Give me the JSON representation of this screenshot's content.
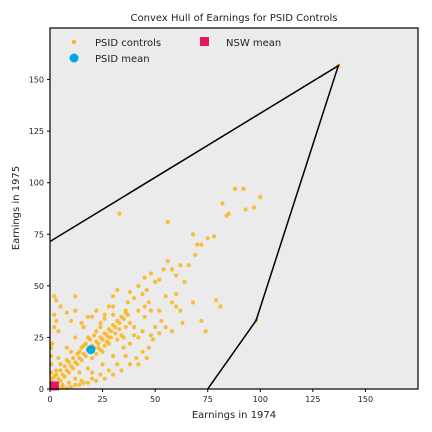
{
  "chart_data": {
    "type": "scatter",
    "title": "Convex Hull of Earnings for PSID Controls",
    "xlabel": "Earnings in 1974",
    "ylabel": "Earnings in 1975",
    "xlim": [
      0,
      175
    ],
    "ylim": [
      0,
      175
    ],
    "x_ticks": [
      0,
      25,
      50,
      75,
      100,
      125,
      150
    ],
    "y_ticks": [
      0,
      25,
      50,
      75,
      100,
      125,
      150
    ],
    "x_tick_labels": [
      "0",
      "25",
      "50",
      "75",
      "100",
      "125",
      "150"
    ],
    "y_tick_labels": [
      "0",
      "25",
      "50",
      "75",
      "100",
      "125",
      "150"
    ],
    "grid": false,
    "legend_position": "top-left",
    "legend": [
      {
        "label": "PSID controls",
        "marker": "dot",
        "color": "#fbb41a"
      },
      {
        "label": "NSW mean",
        "marker": "square",
        "color": "#e8175d"
      },
      {
        "label": "PSID mean",
        "marker": "circle",
        "color": "#00a8e0"
      }
    ],
    "series": [
      {
        "name": "PSID controls",
        "color": "#fbb41a",
        "points": [
          [
            137.1,
            156.7
          ],
          [
            98,
            33.2
          ],
          [
            88,
            97
          ],
          [
            92,
            97
          ],
          [
            97,
            88
          ],
          [
            100,
            93
          ],
          [
            93,
            87
          ],
          [
            84,
            84
          ],
          [
            82,
            90
          ],
          [
            85,
            85
          ],
          [
            33,
            85
          ],
          [
            56,
            81
          ],
          [
            72,
            70
          ],
          [
            70,
            70
          ],
          [
            68,
            75
          ],
          [
            75,
            73
          ],
          [
            78,
            74
          ],
          [
            69,
            65
          ],
          [
            66,
            60
          ],
          [
            62,
            60
          ],
          [
            58,
            58
          ],
          [
            60,
            55
          ],
          [
            64,
            52
          ],
          [
            56,
            62
          ],
          [
            54,
            58
          ],
          [
            52,
            53
          ],
          [
            50,
            52
          ],
          [
            48,
            56
          ],
          [
            45,
            54
          ],
          [
            46,
            48
          ],
          [
            42,
            50
          ],
          [
            40,
            44
          ],
          [
            44,
            46
          ],
          [
            38,
            47
          ],
          [
            37,
            42
          ],
          [
            36,
            38
          ],
          [
            52,
            38
          ],
          [
            48,
            38
          ],
          [
            55,
            45
          ],
          [
            58,
            42
          ],
          [
            60,
            46
          ],
          [
            62,
            38
          ],
          [
            53,
            33
          ],
          [
            60,
            40
          ],
          [
            72,
            33
          ],
          [
            68,
            42
          ],
          [
            74,
            28
          ],
          [
            79,
            43
          ],
          [
            81,
            40
          ],
          [
            42,
            12
          ],
          [
            46,
            15
          ],
          [
            30,
            45
          ],
          [
            28,
            40
          ],
          [
            32,
            48
          ],
          [
            26,
            36
          ],
          [
            2,
            45
          ],
          [
            3,
            43
          ],
          [
            2,
            36
          ],
          [
            3,
            33
          ],
          [
            2,
            30
          ],
          [
            4,
            28
          ],
          [
            5,
            40
          ],
          [
            8,
            37
          ],
          [
            10,
            33
          ],
          [
            12,
            38
          ],
          [
            12,
            45
          ],
          [
            15,
            32
          ],
          [
            18,
            35
          ],
          [
            22,
            38
          ],
          [
            24,
            30
          ],
          [
            28,
            25
          ],
          [
            35,
            25
          ],
          [
            38,
            22
          ],
          [
            40,
            26
          ],
          [
            44,
            28
          ],
          [
            42,
            25
          ],
          [
            48,
            26
          ],
          [
            50,
            30
          ],
          [
            52,
            27
          ],
          [
            55,
            30
          ],
          [
            58,
            28
          ],
          [
            63,
            32
          ],
          [
            0.5,
            0.5
          ],
          [
            1,
            1
          ],
          [
            2,
            2
          ],
          [
            1,
            3
          ],
          [
            3,
            1
          ],
          [
            4,
            5
          ],
          [
            5,
            4
          ],
          [
            6,
            7
          ],
          [
            7,
            6
          ],
          [
            8,
            9
          ],
          [
            9,
            8
          ],
          [
            10,
            11
          ],
          [
            11,
            10
          ],
          [
            12,
            13
          ],
          [
            13,
            12
          ],
          [
            14,
            15
          ],
          [
            15,
            14
          ],
          [
            16,
            17
          ],
          [
            17,
            16
          ],
          [
            18,
            19
          ],
          [
            19,
            18
          ],
          [
            20,
            21
          ],
          [
            21,
            20
          ],
          [
            22,
            23
          ],
          [
            23,
            22
          ],
          [
            24,
            25
          ],
          [
            25,
            24
          ],
          [
            26,
            27
          ],
          [
            27,
            26
          ],
          [
            28,
            29
          ],
          [
            29,
            28
          ],
          [
            30,
            31
          ],
          [
            31,
            30
          ],
          [
            32,
            33
          ],
          [
            33,
            32
          ],
          [
            34,
            35
          ],
          [
            35,
            34
          ],
          [
            36,
            37
          ],
          [
            37,
            36
          ],
          [
            15,
            20
          ],
          [
            20,
            15
          ],
          [
            18,
            25
          ],
          [
            25,
            18
          ],
          [
            22,
            28
          ],
          [
            28,
            22
          ],
          [
            24,
            32
          ],
          [
            32,
            24
          ],
          [
            26,
            34
          ],
          [
            34,
            26
          ],
          [
            30,
            36
          ],
          [
            36,
            30
          ],
          [
            10,
            18
          ],
          [
            18,
            10
          ],
          [
            8,
            14
          ],
          [
            14,
            8
          ],
          [
            5,
            12
          ],
          [
            12,
            5
          ],
          [
            3,
            9
          ],
          [
            9,
            3
          ],
          [
            6,
            2
          ],
          [
            2,
            6
          ],
          [
            4,
            15
          ],
          [
            15,
            4
          ],
          [
            20,
            8
          ],
          [
            8,
            20
          ],
          [
            25,
            12
          ],
          [
            12,
            25
          ],
          [
            30,
            16
          ],
          [
            16,
            30
          ],
          [
            35,
            20
          ],
          [
            20,
            35
          ],
          [
            40,
            30
          ],
          [
            30,
            40
          ],
          [
            38,
            32
          ],
          [
            45,
            35
          ],
          [
            42,
            38
          ],
          [
            47,
            42
          ],
          [
            45,
            40
          ],
          [
            17,
            22
          ],
          [
            22,
            17
          ],
          [
            19,
            24
          ],
          [
            24,
            19
          ],
          [
            21,
            26
          ],
          [
            26,
            21
          ],
          [
            23,
            20
          ],
          [
            27,
            23
          ],
          [
            29,
            25
          ],
          [
            31,
            27
          ],
          [
            33,
            29
          ],
          [
            14,
            18
          ],
          [
            16,
            21
          ],
          [
            11,
            15
          ],
          [
            13,
            17
          ],
          [
            9,
            13
          ],
          [
            7,
            11
          ],
          [
            5,
            9
          ],
          [
            3,
            7
          ],
          [
            1,
            5
          ],
          [
            0.5,
            3
          ],
          [
            0.5,
            8
          ],
          [
            0.5,
            12
          ],
          [
            0.5,
            16
          ],
          [
            0.5,
            20
          ],
          [
            1,
            22
          ],
          [
            6,
            1
          ],
          [
            10,
            1
          ],
          [
            14,
            2
          ],
          [
            18,
            3
          ],
          [
            22,
            4
          ],
          [
            26,
            5
          ],
          [
            30,
            7
          ],
          [
            34,
            9
          ],
          [
            38,
            12
          ],
          [
            41,
            15
          ],
          [
            44,
            18
          ],
          [
            47,
            20
          ],
          [
            49,
            24
          ],
          [
            36,
            16
          ],
          [
            32,
            12
          ],
          [
            28,
            9
          ],
          [
            24,
            7
          ],
          [
            20,
            5
          ],
          [
            16,
            3
          ],
          [
            12,
            2
          ],
          [
            8,
            0.5
          ],
          [
            4,
            0.5
          ],
          [
            2,
            0.5
          ],
          [
            1,
            0.5
          ]
        ]
      }
    ],
    "psid_mean": {
      "label": "PSID mean",
      "x": 19.4,
      "y": 19.1,
      "color": "#00a8e0"
    },
    "nsw_mean": {
      "label": "NSW mean",
      "x": 2.1,
      "y": 1.5,
      "color": "#e8175d"
    },
    "hull": {
      "color": "#000000",
      "vertices": [
        [
          0,
          71.5
        ],
        [
          137.1,
          156.7
        ],
        [
          98,
          33.2
        ],
        [
          75,
          0
        ]
      ]
    }
  }
}
